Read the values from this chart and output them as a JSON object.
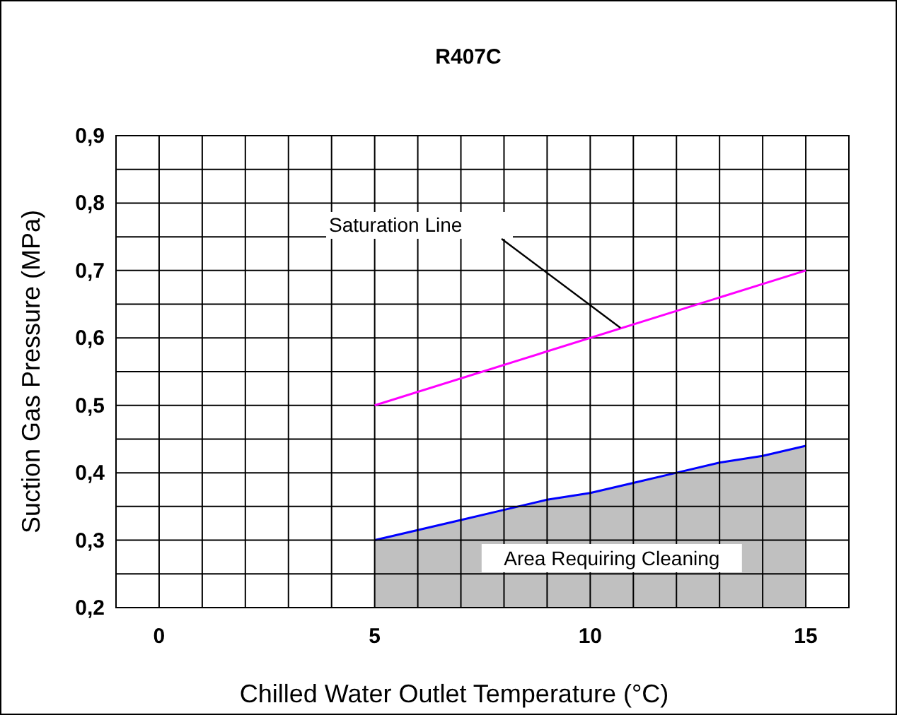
{
  "chart_data": {
    "type": "line",
    "title": "R407C",
    "xlabel": "Chilled Water Outlet Temperature (°C)",
    "ylabel": "Suction Gas Pressure (MPa)",
    "xlim": [
      -1,
      16
    ],
    "xticks": [
      {
        "value": -1,
        "label": null
      },
      0,
      {
        "value": 1,
        "label": null
      },
      {
        "value": 2,
        "label": null
      },
      {
        "value": 3,
        "label": null
      },
      {
        "value": 4,
        "label": null
      },
      5,
      {
        "value": 6,
        "label": null
      },
      {
        "value": 7,
        "label": null
      },
      {
        "value": 8,
        "label": null
      },
      {
        "value": 9,
        "label": null
      },
      10,
      {
        "value": 11,
        "label": null
      },
      {
        "value": 12,
        "label": null
      },
      {
        "value": 13,
        "label": null
      },
      {
        "value": 14,
        "label": null
      },
      15,
      {
        "value": 16,
        "label": null
      }
    ],
    "ylim": [
      0.2,
      0.9
    ],
    "yticks": [
      {
        "value": 0.2,
        "label": "0,2"
      },
      {
        "value": 0.25,
        "label": null
      },
      {
        "value": 0.3,
        "label": "0,3"
      },
      {
        "value": 0.35,
        "label": null
      },
      {
        "value": 0.4,
        "label": "0,4"
      },
      {
        "value": 0.45,
        "label": null
      },
      {
        "value": 0.5,
        "label": "0,5"
      },
      {
        "value": 0.55,
        "label": null
      },
      {
        "value": 0.6,
        "label": "0,6"
      },
      {
        "value": 0.65,
        "label": null
      },
      {
        "value": 0.7,
        "label": "0,7"
      },
      {
        "value": 0.75,
        "label": null
      },
      {
        "value": 0.8,
        "label": "0,8"
      },
      {
        "value": 0.85,
        "label": null
      },
      {
        "value": 0.9,
        "label": "0,9"
      }
    ],
    "grid": true,
    "series": [
      {
        "type": "area",
        "color": "#0000ff",
        "x": [
          5,
          6,
          7,
          8,
          9,
          10,
          11,
          12,
          13,
          14,
          15
        ],
        "values": [
          0.3,
          0.315,
          0.33,
          0.345,
          0.36,
          0.37,
          0.385,
          0.4,
          0.415,
          0.425,
          0.44
        ]
      },
      {
        "color": "#ff00ff",
        "x": [
          5,
          15
        ],
        "values": [
          0.5,
          0.7
        ]
      }
    ],
    "annotations": [
      "Saturation Line",
      "Area Requiring Cleaning"
    ]
  }
}
